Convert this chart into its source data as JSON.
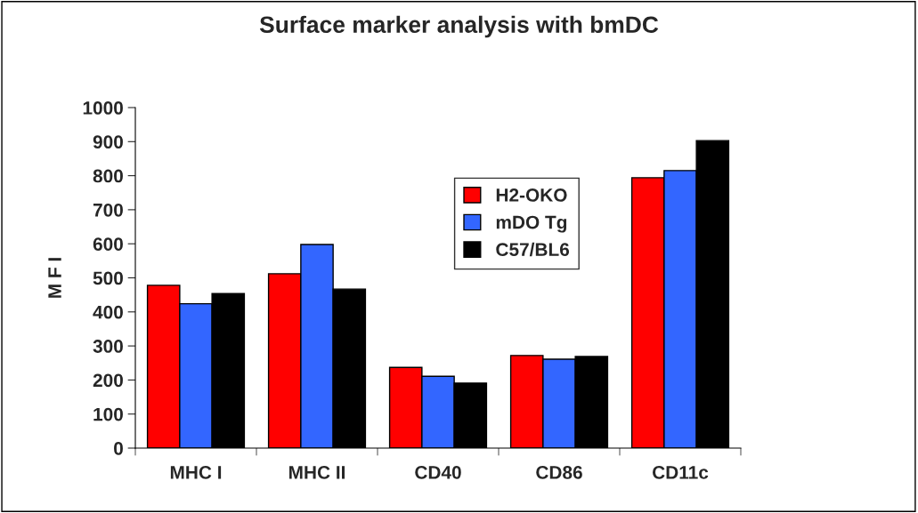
{
  "chart_data": {
    "type": "bar",
    "title": "Surface marker analysis with bmDC",
    "ylabel": "M F I",
    "categories": [
      "MHC I",
      "MHC II",
      "CD40",
      "CD86",
      "CD11c"
    ],
    "series": [
      {
        "name": "H2-OKO",
        "color": "#ff0000",
        "values": [
          478,
          512,
          237,
          272,
          794
        ]
      },
      {
        "name": "mDO Tg",
        "color": "#3366ff",
        "values": [
          424,
          598,
          211,
          261,
          815
        ]
      },
      {
        "name": "C57/BL6",
        "color": "#000000",
        "values": [
          454,
          467,
          191,
          269,
          903
        ]
      }
    ],
    "ylim": [
      0,
      1000
    ],
    "yticks": [
      0,
      100,
      200,
      300,
      400,
      500,
      600,
      700,
      800,
      900,
      1000
    ],
    "grid": false,
    "legend": "top right"
  }
}
